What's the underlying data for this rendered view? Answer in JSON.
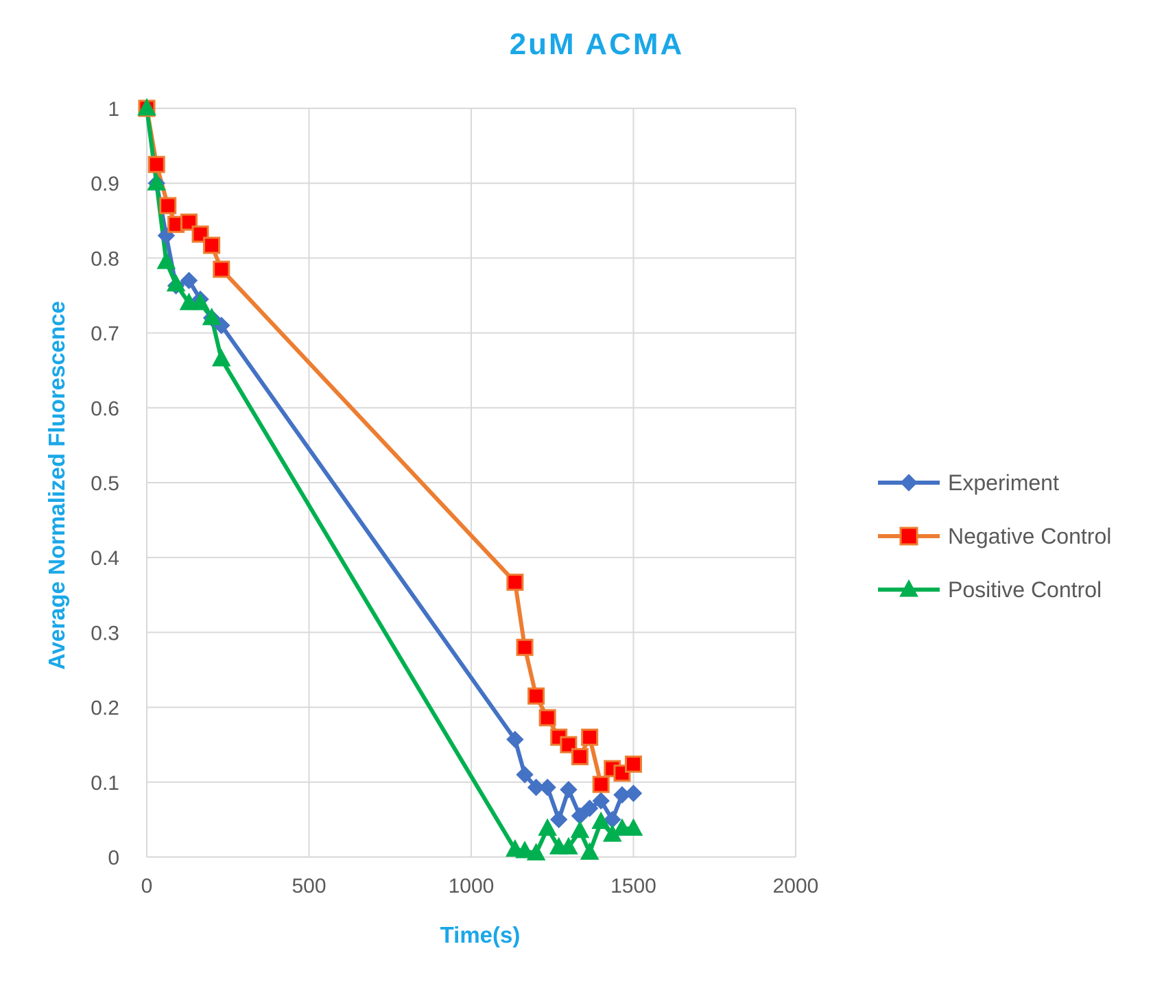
{
  "chart_data": {
    "type": "line",
    "title": "2uM ACMA",
    "xlabel": "Time(s)",
    "ylabel": "Average Normalized Fluorescence",
    "xlim": [
      0,
      2000
    ],
    "ylim": [
      0,
      1
    ],
    "x_ticks": [
      "0",
      "500",
      "1000",
      "1500",
      "2000"
    ],
    "y_ticks": [
      "0",
      "0.1",
      "0.2",
      "0.3",
      "0.4",
      "0.5",
      "0.6",
      "0.7",
      "0.8",
      "0.9",
      "1"
    ],
    "grid": true,
    "legend_position": "right",
    "title_color": "#1aa7e8",
    "axis_label_color": "#1aa7e8",
    "series": [
      {
        "name": "Experiment",
        "color": "#4472c4",
        "marker": "diamond",
        "x": [
          0,
          30,
          60,
          90,
          130,
          165,
          200,
          230,
          1135,
          1165,
          1200,
          1235,
          1270,
          1300,
          1335,
          1365,
          1400,
          1435,
          1465,
          1500
        ],
        "y": [
          1.0,
          0.9,
          0.83,
          0.763,
          0.77,
          0.745,
          0.72,
          0.71,
          0.157,
          0.11,
          0.093,
          0.093,
          0.05,
          0.09,
          0.055,
          0.065,
          0.075,
          0.05,
          0.083,
          0.085
        ]
      },
      {
        "name": "Negative Control",
        "color": "#ed7d31",
        "marker_fill": "#ff0000",
        "marker": "square",
        "x": [
          0,
          30,
          65,
          90,
          130,
          165,
          200,
          230,
          1135,
          1165,
          1200,
          1235,
          1270,
          1300,
          1335,
          1365,
          1400,
          1435,
          1465,
          1500
        ],
        "y": [
          1.0,
          0.925,
          0.87,
          0.845,
          0.848,
          0.832,
          0.817,
          0.785,
          0.367,
          0.28,
          0.215,
          0.186,
          0.16,
          0.15,
          0.134,
          0.16,
          0.097,
          0.118,
          0.112,
          0.124
        ]
      },
      {
        "name": "Positive Control",
        "color": "#00b050",
        "marker": "triangle",
        "x": [
          0,
          30,
          60,
          90,
          130,
          165,
          200,
          230,
          1135,
          1165,
          1200,
          1235,
          1270,
          1300,
          1335,
          1365,
          1400,
          1435,
          1465,
          1500
        ],
        "y": [
          1.0,
          0.9,
          0.795,
          0.765,
          0.74,
          0.74,
          0.72,
          0.665,
          0.01,
          0.008,
          0.005,
          0.038,
          0.013,
          0.013,
          0.035,
          0.006,
          0.047,
          0.03,
          0.038,
          0.038
        ]
      }
    ]
  }
}
